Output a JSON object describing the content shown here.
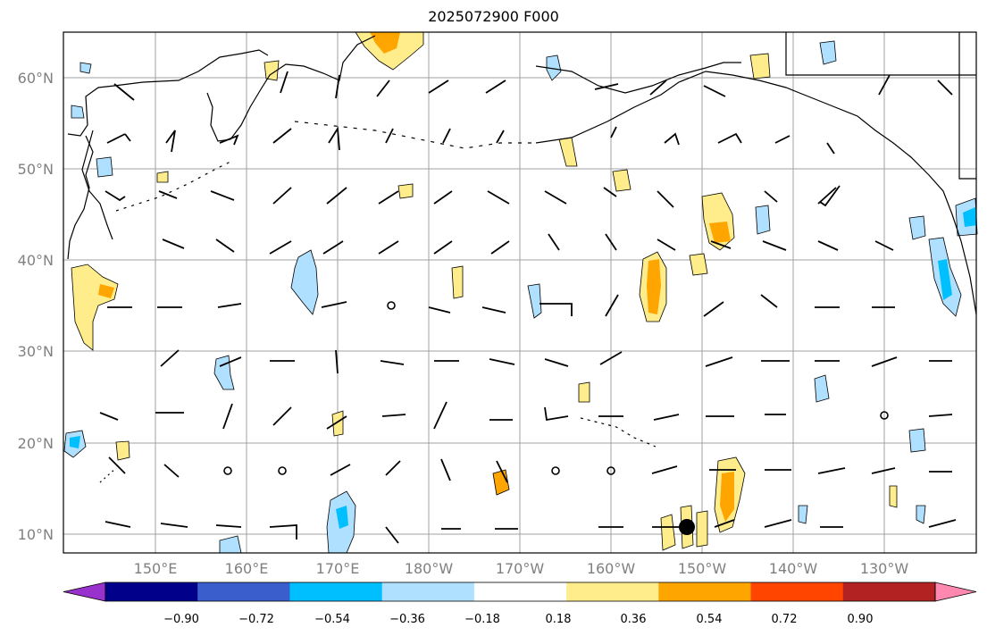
{
  "title": "2025072900 F000",
  "lat_labels": [
    "60°N",
    "50°N",
    "40°N",
    "30°N",
    "20°N",
    "10°N"
  ],
  "lon_labels": [
    "150°E",
    "160°E",
    "170°E",
    "180°W",
    "170°W",
    "160°W",
    "150°W",
    "140°W",
    "130°W"
  ],
  "colorbar": {
    "levels": [
      "−0.90",
      "−0.72",
      "−0.54",
      "−0.36",
      "−0.18",
      "0.18",
      "0.36",
      "0.54",
      "0.72",
      "0.90"
    ],
    "colors": [
      "#9932cc",
      "#00008b",
      "#3a5fcd",
      "#00bfff",
      "#b0e0ff",
      "#ffffff",
      "#ffec8b",
      "#ffa500",
      "#ff4500",
      "#b22222",
      "#ff88b0"
    ]
  },
  "colors": {
    "positive_light": "#ffec8b",
    "positive_mid": "#ffa500",
    "negative_light": "#b0e0ff",
    "negative_mid": "#00bfff",
    "gridline": "#a0a0a0",
    "marker": "#000000"
  }
}
